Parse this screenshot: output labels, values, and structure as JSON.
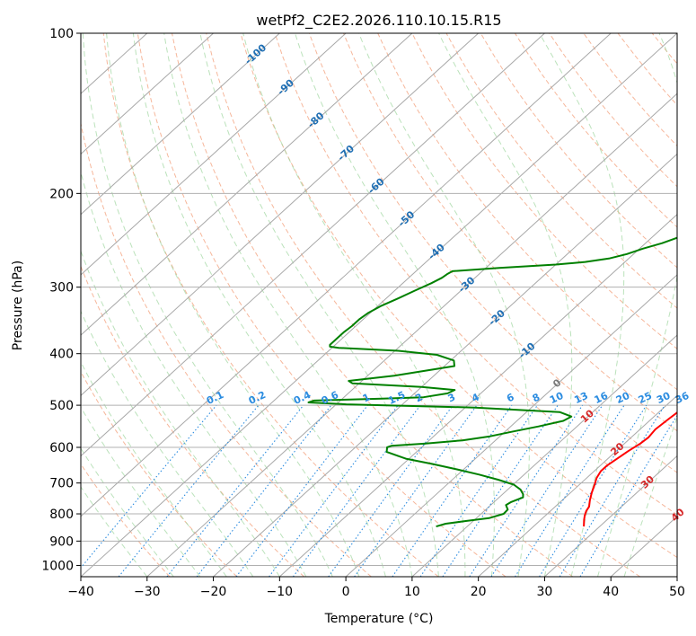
{
  "chart_data": {
    "type": "line",
    "chart_kind": "skew-T log-P diagram",
    "title": "wetPf2_C2E2.2026.110.10.15.R15",
    "xlabel": "Temperature (°C)",
    "ylabel": "Pressure (hPa)",
    "xlim": [
      -40,
      50
    ],
    "ylim": [
      1050,
      100
    ],
    "x_ticks": [
      -40,
      -30,
      -20,
      -10,
      0,
      10,
      20,
      30,
      40,
      50
    ],
    "x_tick_labels": [
      "−40",
      "−30",
      "−20",
      "−10",
      "0",
      "10",
      "20",
      "30",
      "40",
      "50"
    ],
    "y_ticks": [
      100,
      200,
      300,
      400,
      500,
      600,
      700,
      800,
      900,
      1000
    ],
    "y_tick_labels": [
      "100",
      "200",
      "300",
      "400",
      "500",
      "600",
      "700",
      "800",
      "900",
      "1000"
    ],
    "isotherm_labels": [
      "-100",
      "-90",
      "-80",
      "-70",
      "-60",
      "-50",
      "-40",
      "-30",
      "-20",
      "-10",
      "0",
      "10",
      "20",
      "30",
      "40"
    ],
    "isotherm_values": [
      -100,
      -90,
      -80,
      -70,
      -60,
      -50,
      -40,
      -30,
      -20,
      -10,
      0,
      10,
      20,
      30,
      40
    ],
    "mixing_ratio_labels": [
      "0.1",
      "0.2",
      "0.4",
      "0.6",
      "1",
      "1.5",
      "2",
      "3",
      "4",
      "6",
      "8",
      "10",
      "13",
      "16",
      "20",
      "25",
      "30",
      "36"
    ],
    "mixing_ratio_values": [
      0.1,
      0.2,
      0.4,
      0.6,
      1,
      1.5,
      2,
      3,
      4,
      6,
      8,
      10,
      13,
      16,
      20,
      25,
      30,
      36
    ],
    "series": [
      {
        "name": "Temperature",
        "color": "#ff0000",
        "points": [
          [
            27.6,
            845
          ],
          [
            26.5,
            820
          ],
          [
            25.9,
            805
          ],
          [
            25.4,
            790
          ],
          [
            25.1,
            775
          ],
          [
            24.2,
            755
          ],
          [
            23.2,
            730
          ],
          [
            22.3,
            705
          ],
          [
            21.5,
            685
          ],
          [
            21.0,
            665
          ],
          [
            21.0,
            650
          ],
          [
            21.4,
            630
          ],
          [
            21.8,
            610
          ],
          [
            22.4,
            590
          ],
          [
            22.6,
            575
          ],
          [
            22.3,
            555
          ],
          [
            22.6,
            530
          ],
          [
            22.9,
            510
          ],
          [
            22.6,
            490
          ],
          [
            22.1,
            470
          ],
          [
            20.1,
            445
          ],
          [
            18.6,
            420
          ],
          [
            17.4,
            395
          ],
          [
            16.6,
            375
          ],
          [
            16.3,
            360
          ],
          [
            16.1,
            350
          ],
          [
            15.6,
            335
          ],
          [
            14.0,
            310
          ],
          [
            12.1,
            290
          ],
          [
            10.6,
            275
          ],
          [
            8.9,
            260
          ],
          [
            7.6,
            250
          ],
          [
            6.6,
            240
          ],
          [
            5.8,
            230
          ],
          [
            5.3,
            220
          ],
          [
            4.4,
            205
          ],
          [
            3.2,
            190
          ],
          [
            1.9,
            180
          ],
          [
            0.2,
            168
          ],
          [
            -1.8,
            155
          ],
          [
            -3.5,
            145
          ],
          [
            -4.7,
            140
          ],
          [
            -4.8,
            135
          ],
          [
            -4.6,
            130
          ],
          [
            -4.2,
            125
          ],
          [
            -3.0,
            120
          ],
          [
            -1.6,
            115
          ],
          [
            -0.2,
            110
          ],
          [
            1.1,
            106
          ],
          [
            2.3,
            103
          ],
          [
            3.3,
            101
          ],
          [
            3.6,
            100
          ]
        ]
      },
      {
        "name": "Dewpoint",
        "color": "#008000",
        "points": [
          [
            5.3,
            845
          ],
          [
            6.3,
            835
          ],
          [
            9.0,
            825
          ],
          [
            11.9,
            815
          ],
          [
            13.4,
            800
          ],
          [
            13.3,
            785
          ],
          [
            12.3,
            770
          ],
          [
            12.6,
            760
          ],
          [
            13.6,
            745
          ],
          [
            13.1,
            735
          ],
          [
            11.9,
            720
          ],
          [
            10.1,
            705
          ],
          [
            6.9,
            690
          ],
          [
            3.2,
            675
          ],
          [
            -1.0,
            660
          ],
          [
            -5.5,
            645
          ],
          [
            -10.5,
            630
          ],
          [
            -14.5,
            612
          ],
          [
            -15.2,
            600
          ],
          [
            -14.8,
            596
          ],
          [
            -10.0,
            590
          ],
          [
            -5.0,
            582
          ],
          [
            -1.5,
            572
          ],
          [
            1.2,
            560
          ],
          [
            4.2,
            548
          ],
          [
            7.0,
            535
          ],
          [
            7.5,
            525
          ],
          [
            5.0,
            515
          ],
          [
            -8.5,
            505
          ],
          [
            -28.5,
            498
          ],
          [
            -34.5,
            494
          ],
          [
            -34.0,
            490
          ],
          [
            -24.0,
            486
          ],
          [
            -18.0,
            483
          ],
          [
            -15.0,
            475
          ],
          [
            -14.5,
            468
          ],
          [
            -20.0,
            462
          ],
          [
            -31.0,
            455
          ],
          [
            -32.0,
            450
          ],
          [
            -26.0,
            440
          ],
          [
            -18.5,
            422
          ],
          [
            -19.5,
            412
          ],
          [
            -23.0,
            402
          ],
          [
            -29.5,
            395
          ],
          [
            -39.0,
            390
          ],
          [
            -40.5,
            388
          ],
          [
            -40.8,
            385
          ],
          [
            -40.8,
            375
          ],
          [
            -40.8,
            365
          ],
          [
            -40.6,
            355
          ],
          [
            -40.6,
            345
          ],
          [
            -40.3,
            335
          ],
          [
            -39.5,
            325
          ],
          [
            -38.2,
            315
          ],
          [
            -37.0,
            305
          ],
          [
            -35.7,
            295
          ],
          [
            -35.0,
            288
          ],
          [
            -34.8,
            283
          ],
          [
            -34.5,
            280
          ],
          [
            -28.0,
            276
          ],
          [
            -20.0,
            272
          ],
          [
            -16.0,
            269
          ],
          [
            -13.0,
            265
          ],
          [
            -11.0,
            260
          ],
          [
            -9.5,
            254
          ],
          [
            -7.5,
            248
          ],
          [
            -5.6,
            240
          ],
          [
            -5.0,
            230
          ],
          [
            -5.3,
            220
          ],
          [
            -6.0,
            210
          ],
          [
            -5.5,
            200
          ],
          [
            -5.5,
            196
          ],
          [
            -4.8,
            190
          ],
          [
            -3.2,
            185
          ],
          [
            -1.8,
            178
          ],
          [
            -1.4,
            170
          ],
          [
            -1.2,
            162
          ],
          [
            -1.0,
            155
          ],
          [
            -1.7,
            148
          ],
          [
            -2.9,
            141
          ],
          [
            -3.7,
            135
          ],
          [
            -4.6,
            130
          ],
          [
            -5.8,
            124
          ],
          [
            -7.6,
            118
          ],
          [
            -9.3,
            114
          ],
          [
            -10.0,
            110
          ],
          [
            -9.8,
            106
          ],
          [
            -8.0,
            103
          ],
          [
            -5.8,
            101
          ],
          [
            -4.8,
            100
          ]
        ]
      }
    ],
    "reference_lines": [
      "isotherms",
      "isobars",
      "dry adiabats",
      "moist adiabats",
      "mixing ratio lines"
    ]
  }
}
